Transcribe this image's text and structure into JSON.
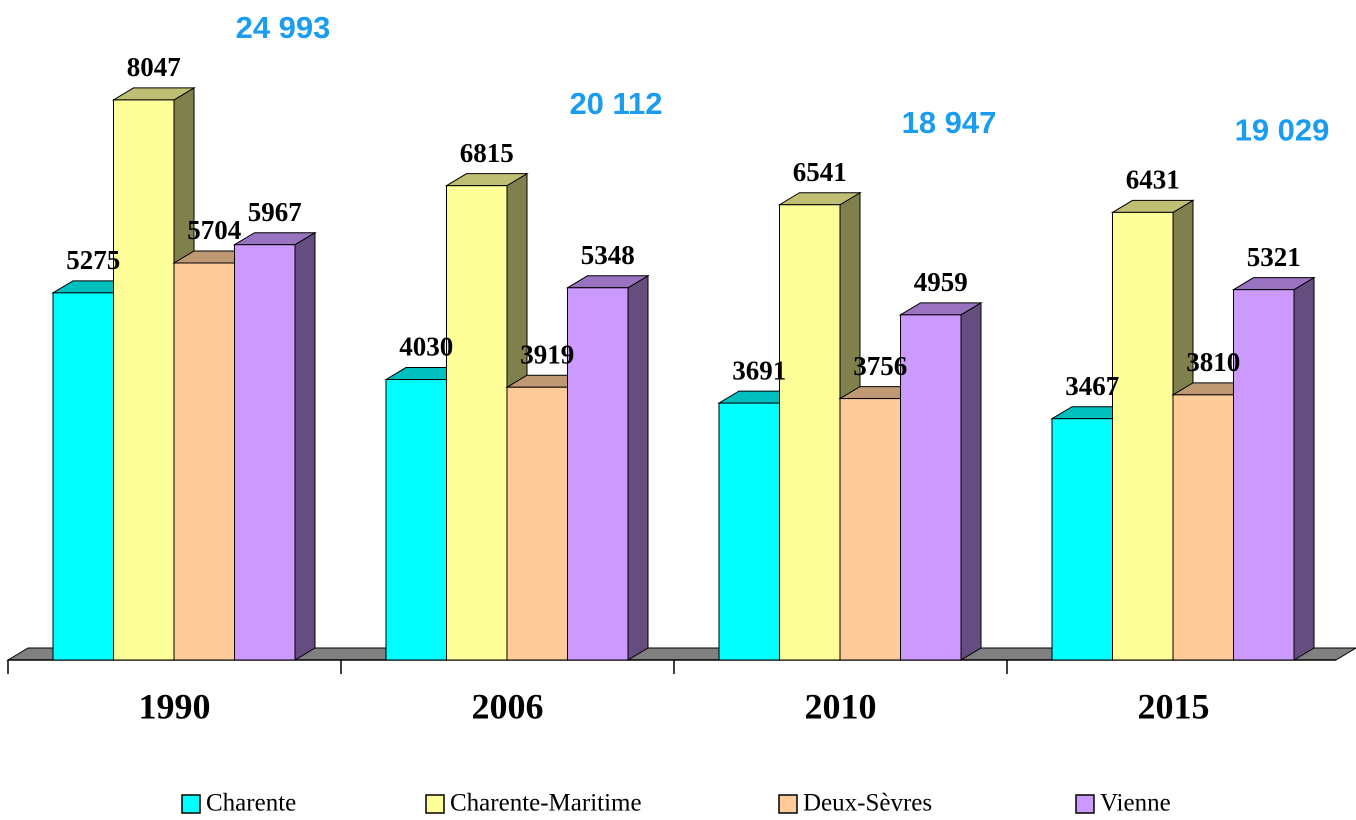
{
  "chart_data": {
    "type": "bar3d",
    "categories": [
      "1990",
      "2006",
      "2010",
      "2015"
    ],
    "series": [
      {
        "name": "Charente",
        "color": "#00ffff",
        "values": [
          5275,
          4030,
          3691,
          3467
        ]
      },
      {
        "name": "Charente-Maritime",
        "color": "#ffff99",
        "values": [
          8047,
          6815,
          6541,
          6431
        ]
      },
      {
        "name": "Deux-Sèvres",
        "color": "#ffcc99",
        "values": [
          5704,
          3919,
          3756,
          3810
        ]
      },
      {
        "name": "Vienne",
        "color": "#cc99ff",
        "values": [
          5967,
          5348,
          4959,
          5321
        ]
      }
    ],
    "totals": {
      "values": [
        24993,
        20112,
        18947,
        19029
      ],
      "value_labels": [
        "24 993",
        "20 112",
        "18 947",
        "19 029"
      ],
      "color": "#1a9cf0"
    },
    "legend": "bottom"
  }
}
